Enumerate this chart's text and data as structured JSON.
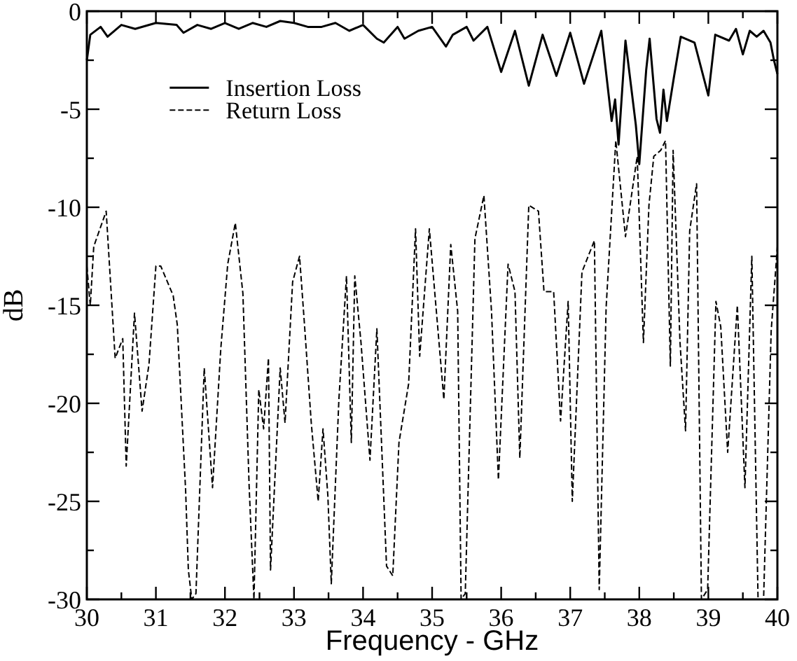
{
  "chart_data": {
    "type": "line",
    "xlabel": "Frequency - GHz",
    "ylabel": "dB",
    "xlim": [
      30,
      40
    ],
    "ylim": [
      -30,
      0
    ],
    "xticks": [
      30,
      {
        "value": 30.5,
        "label": null
      },
      31,
      {
        "value": 31.5,
        "label": null
      },
      32,
      {
        "value": 32.5,
        "label": null
      },
      33,
      {
        "value": 33.5,
        "label": null
      },
      34,
      {
        "value": 34.5,
        "label": null
      },
      35,
      {
        "value": 35.5,
        "label": null
      },
      36,
      {
        "value": 36.5,
        "label": null
      },
      37,
      {
        "value": 37.5,
        "label": null
      },
      38,
      {
        "value": 38.5,
        "label": null
      },
      39,
      {
        "value": 39.5,
        "label": null
      },
      40
    ],
    "yticks": [
      -30,
      {
        "value": -27.5,
        "label": null
      },
      -25,
      {
        "value": -22.5,
        "label": null
      },
      -20,
      {
        "value": -17.5,
        "label": null
      },
      -15,
      {
        "value": -12.5,
        "label": null
      },
      -10,
      {
        "value": -7.5,
        "label": null
      },
      -5,
      {
        "value": -2.5,
        "label": null
      },
      0
    ],
    "grid": false,
    "legend": "top left",
    "marker": "none",
    "series": [
      {
        "name": "Insertion Loss",
        "color": "#000000",
        "line_style": "solid",
        "x": [
          30.0,
          30.05,
          30.2,
          30.3,
          30.5,
          30.7,
          31.0,
          31.3,
          31.4,
          31.6,
          31.8,
          32.0,
          32.2,
          32.4,
          32.6,
          32.8,
          33.0,
          33.2,
          33.4,
          33.6,
          33.8,
          34.0,
          34.2,
          34.3,
          34.5,
          34.6,
          34.8,
          35.0,
          35.2,
          35.3,
          35.5,
          35.6,
          35.8,
          36.0,
          36.2,
          36.4,
          36.6,
          36.8,
          37.0,
          37.2,
          37.45,
          37.6,
          37.65,
          37.7,
          37.8,
          37.95,
          38.0,
          38.1,
          38.15,
          38.25,
          38.3,
          38.35,
          38.4,
          38.5,
          38.6,
          38.8,
          39.0,
          39.1,
          39.3,
          39.4,
          39.5,
          39.6,
          39.7,
          39.8,
          39.9,
          39.95,
          40.0
        ],
        "values": [
          -2.5,
          -1.2,
          -0.8,
          -1.3,
          -0.7,
          -0.9,
          -0.6,
          -0.7,
          -1.1,
          -0.7,
          -0.9,
          -0.6,
          -0.9,
          -0.6,
          -0.8,
          -0.5,
          -0.6,
          -0.8,
          -0.8,
          -0.6,
          -1.0,
          -0.7,
          -1.4,
          -1.6,
          -0.8,
          -1.4,
          -1.0,
          -0.8,
          -1.8,
          -1.2,
          -0.8,
          -1.5,
          -0.8,
          -3.1,
          -1.0,
          -3.8,
          -1.2,
          -3.3,
          -1.1,
          -3.7,
          -1.0,
          -5.6,
          -4.5,
          -6.8,
          -1.5,
          -5.8,
          -7.8,
          -3.0,
          -1.4,
          -5.5,
          -6.2,
          -4.0,
          -5.6,
          -3.4,
          -1.3,
          -1.6,
          -4.3,
          -1.2,
          -1.5,
          -0.9,
          -2.2,
          -1.0,
          -1.3,
          -1.0,
          -1.6,
          -2.5,
          -3.2
        ]
      },
      {
        "name": "Return Loss",
        "color": "#000000",
        "line_style": "dashed",
        "x": [
          30.0,
          30.05,
          30.1,
          30.28,
          30.41,
          30.52,
          30.57,
          30.69,
          30.8,
          30.9,
          31.0,
          31.07,
          31.25,
          31.31,
          31.43,
          31.47,
          31.52,
          31.58,
          31.7,
          31.82,
          31.94,
          32.04,
          32.15,
          32.26,
          32.35,
          32.42,
          32.49,
          32.56,
          32.63,
          32.66,
          32.8,
          32.87,
          32.98,
          33.08,
          33.15,
          33.25,
          33.35,
          33.42,
          33.49,
          33.54,
          33.65,
          33.76,
          33.83,
          33.88,
          33.97,
          34.1,
          34.2,
          34.34,
          34.43,
          34.52,
          34.66,
          34.76,
          34.82,
          34.96,
          35.17,
          35.27,
          35.37,
          35.42,
          35.48,
          35.62,
          35.75,
          35.86,
          35.96,
          36.1,
          36.2,
          36.27,
          36.4,
          36.54,
          36.62,
          36.76,
          36.86,
          36.97,
          37.03,
          37.17,
          37.35,
          37.42,
          37.52,
          37.66,
          37.8,
          37.97,
          38.06,
          38.14,
          38.21,
          38.31,
          38.38,
          38.45,
          38.49,
          38.59,
          38.67,
          38.73,
          38.83,
          38.9,
          38.99,
          39.11,
          39.18,
          39.28,
          39.42,
          39.53,
          39.63,
          39.72,
          39.8,
          39.91,
          40.0
        ],
        "values": [
          -13,
          -15,
          -12,
          -10.2,
          -17.7,
          -16.7,
          -23.2,
          -15.4,
          -20.4,
          -18,
          -13,
          -13,
          -14.5,
          -16,
          -24.4,
          -28.5,
          -30,
          -29.7,
          -18.2,
          -24.3,
          -17.2,
          -12.9,
          -10.8,
          -14.4,
          -24.2,
          -30,
          -19.3,
          -21.3,
          -17.7,
          -28.5,
          -18.2,
          -21,
          -13.8,
          -12.5,
          -15.9,
          -21,
          -25,
          -21.3,
          -24.7,
          -29.2,
          -19.8,
          -13.5,
          -22,
          -13.5,
          -16.9,
          -22.9,
          -16.2,
          -28.3,
          -28.8,
          -22,
          -19,
          -11.1,
          -17.6,
          -11.1,
          -19.8,
          -11.9,
          -15.3,
          -30,
          -29.7,
          -11.6,
          -9.4,
          -15.3,
          -23.9,
          -12.9,
          -14.3,
          -22.8,
          -9.9,
          -10.2,
          -14.3,
          -14.3,
          -20.9,
          -14.8,
          -25,
          -13.3,
          -11.7,
          -29.5,
          -15.1,
          -6.6,
          -11.5,
          -7.4,
          -16.9,
          -9.9,
          -7.4,
          -7.1,
          -6.6,
          -18.1,
          -7.1,
          -16.9,
          -21.4,
          -11.2,
          -8.8,
          -30,
          -29.5,
          -14.8,
          -16.1,
          -22.5,
          -15,
          -24.3,
          -12.5,
          -30,
          -30,
          -16.3,
          -12
        ]
      }
    ]
  }
}
